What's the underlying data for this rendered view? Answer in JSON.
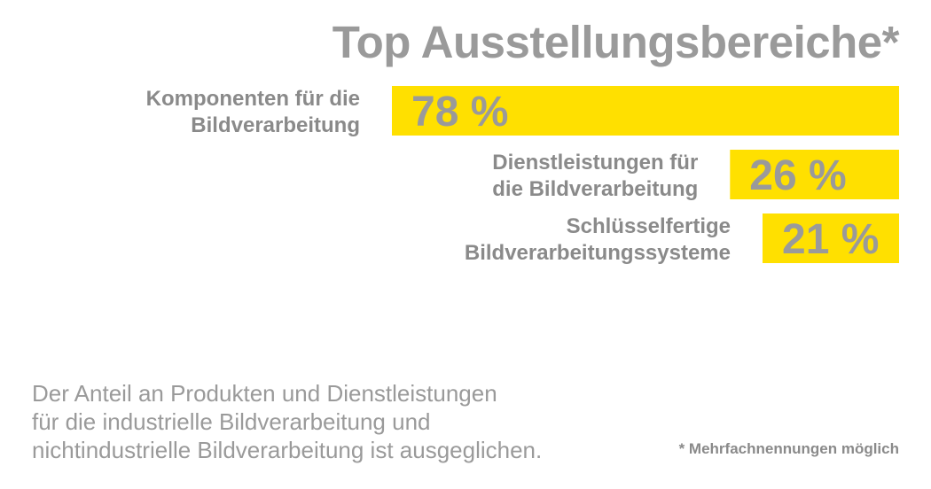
{
  "title": "Top Ausstellungsbereiche*",
  "chart_data": {
    "type": "bar",
    "orientation": "horizontal",
    "title": "Top Ausstellungsbereiche*",
    "unit": "%",
    "categories": [
      [
        "Komponenten für die",
        "Bildverarbeitung"
      ],
      [
        "Dienstleistungen für",
        "die Bildverarbeitung"
      ],
      [
        "Schlüsselfertige",
        "Bildverarbeitungssysteme"
      ]
    ],
    "values": [
      78,
      26,
      21
    ],
    "value_labels": [
      "78 %",
      "26 %",
      "21 %"
    ],
    "xlim": [
      0,
      78
    ],
    "grid": false,
    "bar_color": "#FFE000",
    "value_color": "#9A9A9A",
    "label_color": "#8A8A8A"
  },
  "note": [
    "Der Anteil an Produkten und Dienstleistungen",
    "für die industrielle Bildverarbeitung und",
    "nichtindustrielle Bildverarbeitung ist ausgeglichen."
  ],
  "footnote": "* Mehrfachnennungen möglich"
}
